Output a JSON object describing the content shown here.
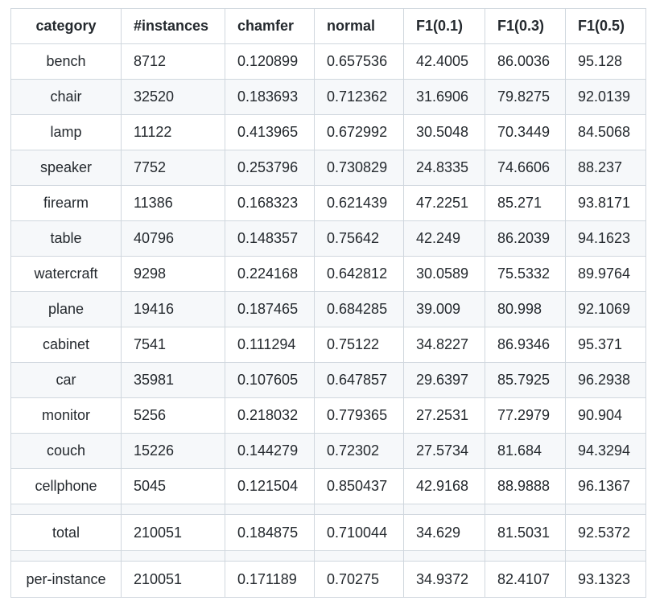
{
  "table": {
    "headers": [
      "category",
      "#instances",
      "chamfer",
      "normal",
      "F1(0.1)",
      "F1(0.3)",
      "F1(0.5)"
    ],
    "rows": [
      [
        "bench",
        "8712",
        "0.120899",
        "0.657536",
        "42.4005",
        "86.0036",
        "95.128"
      ],
      [
        "chair",
        "32520",
        "0.183693",
        "0.712362",
        "31.6906",
        "79.8275",
        "92.0139"
      ],
      [
        "lamp",
        "11122",
        "0.413965",
        "0.672992",
        "30.5048",
        "70.3449",
        "84.5068"
      ],
      [
        "speaker",
        "7752",
        "0.253796",
        "0.730829",
        "24.8335",
        "74.6606",
        "88.237"
      ],
      [
        "firearm",
        "11386",
        "0.168323",
        "0.621439",
        "47.2251",
        "85.271",
        "93.8171"
      ],
      [
        "table",
        "40796",
        "0.148357",
        "0.75642",
        "42.249",
        "86.2039",
        "94.1623"
      ],
      [
        "watercraft",
        "9298",
        "0.224168",
        "0.642812",
        "30.0589",
        "75.5332",
        "89.9764"
      ],
      [
        "plane",
        "19416",
        "0.187465",
        "0.684285",
        "39.009",
        "80.998",
        "92.1069"
      ],
      [
        "cabinet",
        "7541",
        "0.111294",
        "0.75122",
        "34.8227",
        "86.9346",
        "95.371"
      ],
      [
        "car",
        "35981",
        "0.107605",
        "0.647857",
        "29.6397",
        "85.7925",
        "96.2938"
      ],
      [
        "monitor",
        "5256",
        "0.218032",
        "0.779365",
        "27.2531",
        "77.2979",
        "90.904"
      ],
      [
        "couch",
        "15226",
        "0.144279",
        "0.72302",
        "27.5734",
        "81.684",
        "94.3294"
      ],
      [
        "cellphone",
        "5045",
        "0.121504",
        "0.850437",
        "42.9168",
        "88.9888",
        "96.1367"
      ]
    ],
    "total": [
      "total",
      "210051",
      "0.184875",
      "0.710044",
      "34.629",
      "81.5031",
      "92.5372"
    ],
    "per_instance": [
      "per-instance",
      "210051",
      "0.171189",
      "0.70275",
      "34.9372",
      "82.4107",
      "93.1323"
    ]
  },
  "colors": {
    "text": "#24292e",
    "border": "#d0d7de",
    "stripe": "#f6f8fa"
  }
}
